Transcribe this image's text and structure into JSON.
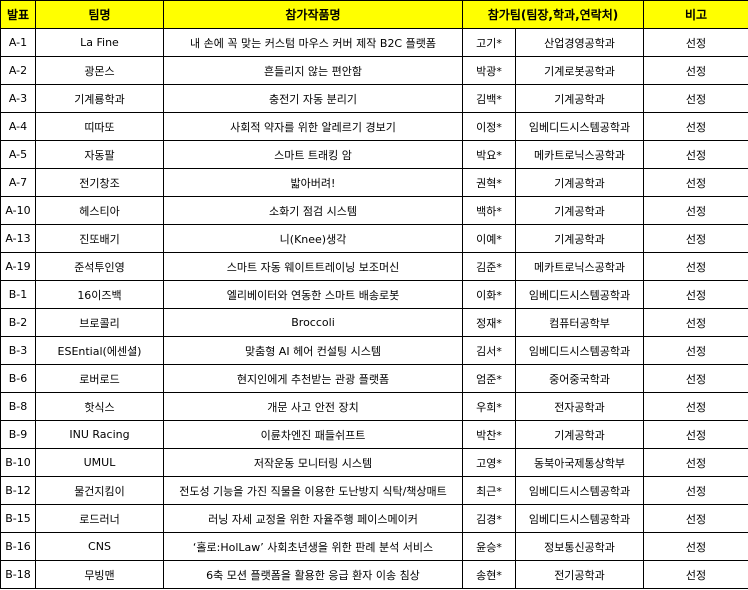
{
  "header": {
    "presentation": "발표",
    "team_name": "팀명",
    "project_name": "참가작품명",
    "participants": "참가팀(팀장,학과,연락처)",
    "remarks": "비고"
  },
  "rows": [
    {
      "id": "A-1",
      "team": "La Fine",
      "project": "내 손에 꼭 맞는 커스텀 마우스 커버 제작 B2C 플랫폼",
      "leader": "고기*",
      "dept": "산업경영공학과",
      "note": "선정"
    },
    {
      "id": "A-2",
      "team": "광몬스",
      "project": "흔들리지 않는 편안함",
      "leader": "박광*",
      "dept": "기계로봇공학과",
      "note": "선정"
    },
    {
      "id": "A-3",
      "team": "기계룡학과",
      "project": "충전기 자동 분리기",
      "leader": "김백*",
      "dept": "기계공학과",
      "note": "선정"
    },
    {
      "id": "A-4",
      "team": "띠따또",
      "project": "사회적 약자를 위한 알레르기 경보기",
      "leader": "이정*",
      "dept": "임베디드시스템공학과",
      "note": "선정"
    },
    {
      "id": "A-5",
      "team": "자동팔",
      "project": "스마트 트래킹 암",
      "leader": "박요*",
      "dept": "메카트로닉스공학과",
      "note": "선정"
    },
    {
      "id": "A-7",
      "team": "전기창조",
      "project": "밟아버려!",
      "leader": "권혁*",
      "dept": "기계공학과",
      "note": "선정"
    },
    {
      "id": "A-10",
      "team": "헤스티아",
      "project": "소화기 점검 시스템",
      "leader": "백하*",
      "dept": "기계공학과",
      "note": "선정"
    },
    {
      "id": "A-13",
      "team": "진또배기",
      "project": "니(Knee)생각",
      "leader": "이예*",
      "dept": "기계공학과",
      "note": "선정"
    },
    {
      "id": "A-19",
      "team": "준석투인영",
      "project": "스마트 자동 웨이트트레이닝 보조머신",
      "leader": "김준*",
      "dept": "메카트로닉스공학과",
      "note": "선정"
    },
    {
      "id": "B-1",
      "team": "16이즈백",
      "project": "엘리베이터와 연동한 스마트 배송로봇",
      "leader": "이화*",
      "dept": "임베디드시스템공학과",
      "note": "선정"
    },
    {
      "id": "B-2",
      "team": "브로콜리",
      "project": "Broccoli",
      "leader": "정재*",
      "dept": "컴퓨터공학부",
      "note": "선정"
    },
    {
      "id": "B-3",
      "team": "ESEntial(에센셜)",
      "project": "맞춤형 AI 헤어 컨설팅 시스템",
      "leader": "김서*",
      "dept": "임베디드시스템공학과",
      "note": "선정"
    },
    {
      "id": "B-6",
      "team": "로버로드",
      "project": "현지인에게 추천받는 관광 플랫폼",
      "leader": "엄준*",
      "dept": "중어중국학과",
      "note": "선정"
    },
    {
      "id": "B-8",
      "team": "핫식스",
      "project": "개문 사고 안전 장치",
      "leader": "우희*",
      "dept": "전자공학과",
      "note": "선정"
    },
    {
      "id": "B-9",
      "team": "INU Racing",
      "project": "이륜차엔진 패들쉬프트",
      "leader": "박찬*",
      "dept": "기계공학과",
      "note": "선정"
    },
    {
      "id": "B-10",
      "team": "UMUL",
      "project": "저작운동 모니터링 시스템",
      "leader": "고영*",
      "dept": "동북아국제통상학부",
      "note": "선정"
    },
    {
      "id": "B-12",
      "team": "물건지킴이",
      "project": "전도성 기능을 가진 직물을 이용한 도난방지 식탁/책상매트",
      "leader": "최근*",
      "dept": "임베디드시스템공학과",
      "note": "선정"
    },
    {
      "id": "B-15",
      "team": "로드러너",
      "project": "러닝 자세 교정을 위한 자율주행 페이스메이커",
      "leader": "김경*",
      "dept": "임베디드시스템공학과",
      "note": "선정"
    },
    {
      "id": "B-16",
      "team": "CNS",
      "project": "‘홀로:HolLaw’ 사회초년생을 위한 판례 분석 서비스",
      "leader": "윤승*",
      "dept": "정보통신공학과",
      "note": "선정"
    },
    {
      "id": "B-18",
      "team": "무빙맨",
      "project": "6축 모션 플랫폼을 활용한 응급 환자 이송 침상",
      "leader": "송현*",
      "dept": "전기공학과",
      "note": "선정"
    }
  ],
  "colors": {
    "header_bg": "#ffff00",
    "border": "#000000"
  }
}
